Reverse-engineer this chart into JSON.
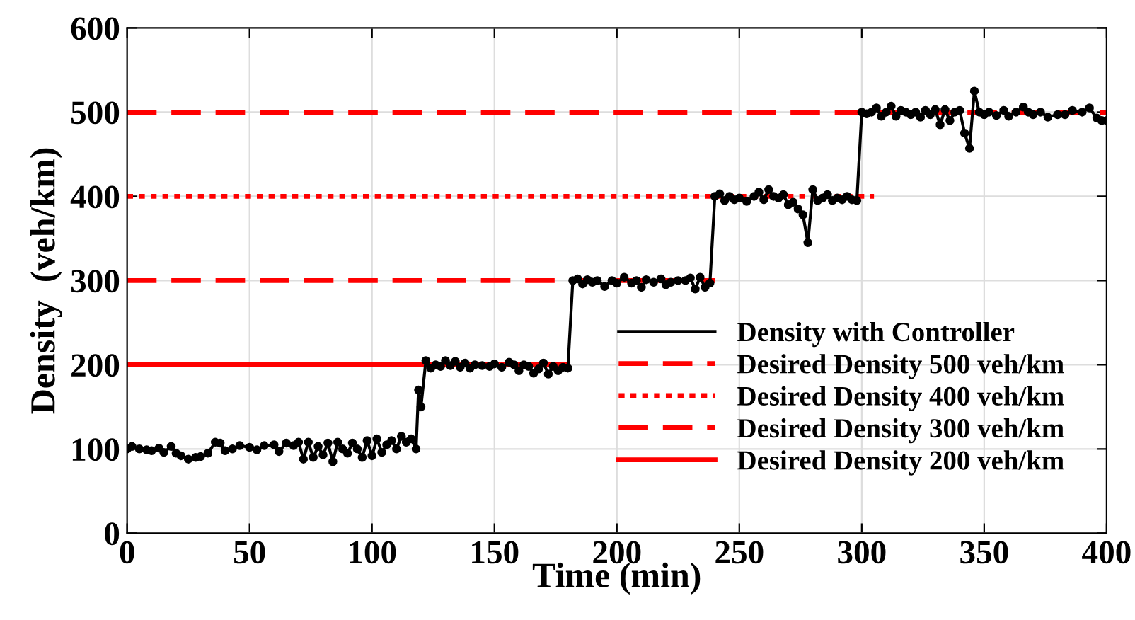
{
  "chart_data": {
    "type": "line",
    "xlabel": "Time (min)",
    "ylabel": "Density  (veh/km)",
    "xlim": [
      0,
      400
    ],
    "ylim": [
      0,
      600
    ],
    "xticks": [
      0,
      50,
      100,
      150,
      200,
      250,
      300,
      350,
      400
    ],
    "yticks": [
      0,
      100,
      200,
      300,
      400,
      500,
      600
    ],
    "grid": true,
    "legend": "bottom right",
    "series": [
      {
        "name": "Density with Controller",
        "color": "#000000",
        "marker": "circle",
        "line_style": "solid",
        "x": [
          0,
          2,
          5,
          8,
          10,
          13,
          15,
          18,
          20,
          22,
          25,
          28,
          30,
          33,
          36,
          38,
          40,
          43,
          46,
          50,
          53,
          56,
          60,
          62,
          65,
          68,
          70,
          72,
          74,
          76,
          78,
          80,
          82,
          84,
          86,
          88,
          90,
          92,
          94,
          96,
          98,
          100,
          102,
          104,
          106,
          108,
          110,
          112,
          114,
          116,
          118,
          119,
          120,
          122,
          124,
          126,
          128,
          130,
          132,
          134,
          136,
          138,
          140,
          142,
          145,
          148,
          150,
          153,
          156,
          158,
          160,
          162,
          164,
          166,
          168,
          170,
          172,
          174,
          176,
          178,
          180,
          182,
          184,
          186,
          188,
          190,
          192,
          195,
          198,
          200,
          203,
          206,
          208,
          210,
          212,
          215,
          218,
          220,
          222,
          225,
          228,
          230,
          232,
          234,
          236,
          238,
          240,
          242,
          244,
          246,
          248,
          250,
          253,
          256,
          258,
          260,
          262,
          264,
          266,
          268,
          270,
          272,
          274,
          276,
          278,
          280,
          282,
          284,
          286,
          288,
          290,
          292,
          294,
          296,
          298,
          300,
          302,
          304,
          306,
          308,
          310,
          312,
          314,
          316,
          318,
          320,
          322,
          324,
          326,
          328,
          330,
          332,
          334,
          336,
          338,
          340,
          342,
          344,
          346,
          348,
          350,
          352,
          355,
          358,
          360,
          363,
          366,
          368,
          370,
          373,
          376,
          380,
          383,
          386,
          390,
          393,
          396,
          398,
          400
        ],
        "values": [
          100,
          103,
          100,
          99,
          98,
          101,
          96,
          103,
          95,
          92,
          88,
          90,
          91,
          95,
          108,
          107,
          98,
          100,
          104,
          102,
          99,
          104,
          105,
          97,
          107,
          104,
          108,
          88,
          108,
          90,
          103,
          93,
          107,
          85,
          108,
          100,
          95,
          107,
          100,
          90,
          110,
          92,
          112,
          96,
          105,
          110,
          100,
          115,
          108,
          112,
          100,
          170,
          150,
          205,
          196,
          200,
          198,
          205,
          199,
          204,
          197,
          202,
          196,
          200,
          199,
          198,
          201,
          197,
          203,
          200,
          193,
          200,
          198,
          190,
          195,
          202,
          189,
          198,
          193,
          197,
          196,
          300,
          302,
          296,
          301,
          298,
          300,
          293,
          300,
          297,
          304,
          297,
          300,
          292,
          301,
          298,
          302,
          295,
          298,
          300,
          300,
          303,
          290,
          304,
          292,
          297,
          400,
          403,
          395,
          400,
          396,
          398,
          394,
          400,
          405,
          396,
          408,
          400,
          398,
          402,
          390,
          393,
          385,
          378,
          345,
          408,
          395,
          398,
          402,
          395,
          398,
          396,
          400,
          396,
          395,
          500,
          498,
          500,
          505,
          495,
          500,
          507,
          495,
          502,
          500,
          497,
          500,
          494,
          502,
          497,
          503,
          485,
          503,
          490,
          500,
          502,
          475,
          457,
          525,
          500,
          497,
          500,
          496,
          502,
          495,
          500,
          506,
          500,
          497,
          500,
          494,
          497,
          497,
          502,
          500,
          505,
          493,
          490,
          490
        ]
      },
      {
        "name": "Desired Density 500 veh/km",
        "color": "#ff0000",
        "line_style": "dashed",
        "x": [
          0,
          400
        ],
        "values": [
          500,
          500
        ]
      },
      {
        "name": "Desired Density 400 veh/km",
        "color": "#ff0000",
        "line_style": "dotted",
        "x": [
          0,
          305
        ],
        "values": [
          400,
          400
        ]
      },
      {
        "name": "Desired Density 300 veh/km",
        "color": "#ff0000",
        "line_style": "dashed",
        "x": [
          0,
          240
        ],
        "values": [
          300,
          300
        ]
      },
      {
        "name": "Desired Density 200 veh/km",
        "color": "#ff0000",
        "line_style": "solid",
        "x": [
          0,
          180
        ],
        "values": [
          200,
          200
        ]
      }
    ]
  }
}
